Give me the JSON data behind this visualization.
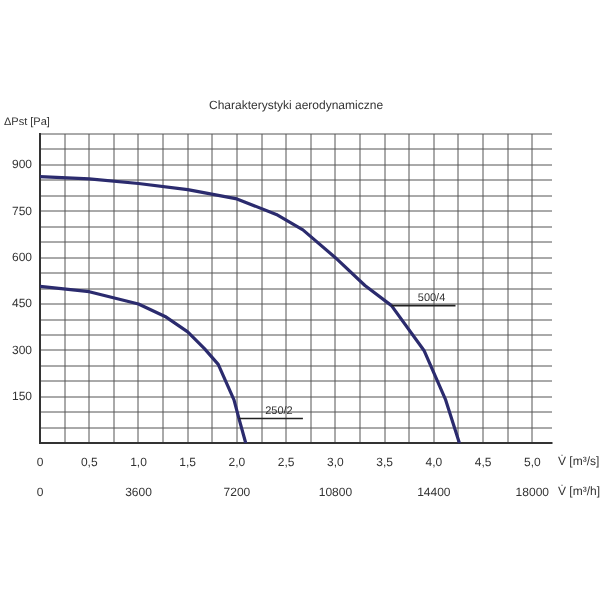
{
  "chart_data": {
    "type": "line",
    "title": "Charakterystyki aerodynamiczne",
    "xlabel": "V̇ [m³/s]",
    "x2label": "V̇ [m³/h]",
    "ylabel": "ΔPst [Pa]",
    "series": [
      {
        "type": "line",
        "color": "#2b2b6e",
        "x": [
          0,
          0.5,
          1.0,
          1.5,
          2.0,
          2.4,
          2.67,
          3.0,
          3.3,
          3.57,
          3.9,
          4.12,
          4.26
        ],
        "values": [
          862,
          855,
          840,
          820,
          790,
          740,
          690,
          600,
          510,
          445,
          300,
          140,
          0
        ]
      },
      {
        "type": "line",
        "color": "#2b2b6e",
        "x": [
          0,
          0.5,
          1.0,
          1.27,
          1.5,
          1.67,
          1.81,
          1.97,
          2.02,
          2.09
        ],
        "values": [
          507,
          490,
          450,
          410,
          360,
          306,
          255,
          140,
          80,
          0
        ]
      }
    ],
    "annotations": [
      {
        "text": "500/4",
        "x": 3.57,
        "y": 445
      },
      {
        "text": "250/2",
        "x": 2.02,
        "y": 80
      }
    ],
    "xlim": [
      0,
      5.2
    ],
    "xticks": [
      0,
      {
        "value": 0.25,
        "label": null
      },
      {
        "value": 0.5,
        "label": "0,5"
      },
      {
        "value": 0.75,
        "label": null
      },
      {
        "value": 1,
        "label": "1,0"
      },
      {
        "value": 1.25,
        "label": null
      },
      {
        "value": 1.5,
        "label": "1,5"
      },
      {
        "value": 1.75,
        "label": null
      },
      {
        "value": 2,
        "label": "2,0"
      },
      {
        "value": 2.25,
        "label": null
      },
      {
        "value": 2.5,
        "label": "2,5"
      },
      {
        "value": 2.75,
        "label": null
      },
      {
        "value": 3,
        "label": "3,0"
      },
      {
        "value": 3.25,
        "label": null
      },
      {
        "value": 3.5,
        "label": "3,5"
      },
      {
        "value": 3.75,
        "label": null
      },
      {
        "value": 4,
        "label": "4,0"
      },
      {
        "value": 4.25,
        "label": null
      },
      {
        "value": 4.5,
        "label": "4,5"
      },
      {
        "value": 4.75,
        "label": null
      },
      {
        "value": 5,
        "label": "5,0"
      }
    ],
    "x2lim": [
      0,
      18720
    ],
    "x2ticks": [
      0,
      3600,
      7200,
      10800,
      14400,
      18000
    ],
    "ylim": [
      0,
      1000
    ],
    "yticks": [
      {
        "value": 0,
        "label": null
      },
      {
        "value": 50,
        "label": null
      },
      {
        "value": 100,
        "label": null
      },
      150,
      {
        "value": 200,
        "label": null
      },
      {
        "value": 250,
        "label": null
      },
      300,
      {
        "value": 350,
        "label": null
      },
      {
        "value": 400,
        "label": null
      },
      450,
      {
        "value": 500,
        "label": null
      },
      {
        "value": 550,
        "label": null
      },
      600,
      {
        "value": 650,
        "label": null
      },
      {
        "value": 700,
        "label": null
      },
      750,
      {
        "value": 800,
        "label": null
      },
      {
        "value": 850,
        "label": null
      },
      900,
      {
        "value": 950,
        "label": null
      },
      {
        "value": 1000,
        "label": null
      }
    ],
    "grid": true,
    "legend": false,
    "marker": "none",
    "line_style": "solid"
  }
}
